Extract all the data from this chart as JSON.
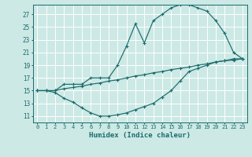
{
  "xlabel": "Humidex (Indice chaleur)",
  "xlim": [
    -0.5,
    23.5
  ],
  "ylim": [
    10.0,
    28.5
  ],
  "xticks": [
    0,
    1,
    2,
    3,
    4,
    5,
    6,
    7,
    8,
    9,
    10,
    11,
    12,
    13,
    14,
    15,
    16,
    17,
    18,
    19,
    20,
    21,
    22,
    23
  ],
  "yticks": [
    11,
    13,
    15,
    17,
    19,
    21,
    23,
    25,
    27
  ],
  "bg_color": "#cce9e5",
  "line_color": "#1a6b6b",
  "grid_color": "#ffffff",
  "lines": [
    {
      "x": [
        0,
        1,
        2,
        3,
        4,
        5,
        6,
        7,
        8,
        9,
        10,
        11,
        12,
        13,
        14,
        15,
        16,
        17,
        18,
        19,
        20,
        21,
        22,
        23
      ],
      "y": [
        15,
        15,
        15,
        16,
        16,
        16,
        17,
        17,
        17,
        19,
        22,
        25.5,
        22.5,
        26,
        27,
        28,
        28.5,
        28.5,
        28,
        27.5,
        26,
        24,
        21,
        20
      ]
    },
    {
      "x": [
        0,
        1,
        2,
        3,
        4,
        5,
        6,
        7,
        8,
        9,
        10,
        11,
        12,
        13,
        14,
        15,
        16,
        17,
        18,
        19,
        20,
        21,
        22,
        23
      ],
      "y": [
        15,
        15,
        15,
        15.3,
        15.5,
        15.7,
        16,
        16.2,
        16.5,
        16.7,
        17,
        17.3,
        17.5,
        17.8,
        18,
        18.3,
        18.5,
        18.7,
        19,
        19.2,
        19.5,
        19.7,
        19.8,
        20
      ]
    },
    {
      "x": [
        0,
        1,
        2,
        3,
        4,
        5,
        6,
        7,
        8,
        9,
        10,
        11,
        12,
        13,
        14,
        15,
        16,
        17,
        18,
        19,
        20,
        21,
        22,
        23
      ],
      "y": [
        15,
        15,
        14.7,
        13.8,
        13.2,
        12.3,
        11.5,
        11.0,
        11.0,
        11.2,
        11.5,
        12,
        12.5,
        13,
        14,
        15,
        16.5,
        18,
        18.5,
        19,
        19.5,
        19.7,
        20,
        20
      ]
    }
  ]
}
